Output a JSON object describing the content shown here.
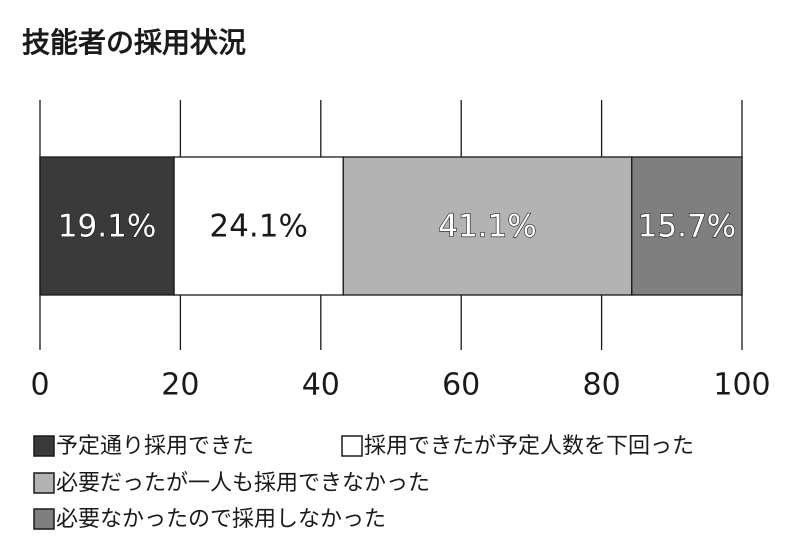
{
  "chart_data": {
    "type": "bar",
    "orientation": "horizontal",
    "stacked": true,
    "title": "技能者の採用状況",
    "series": [
      {
        "name": "予定通り採用できた",
        "color": "#3a3a3a",
        "values": [
          19.1
        ],
        "value_labels": [
          "19.1%"
        ]
      },
      {
        "name": "採用できたが予定人数を下回った",
        "color": "#ffffff",
        "values": [
          24.1
        ],
        "value_labels": [
          "24.1%"
        ]
      },
      {
        "name": "必要だったが一人も採用できなかった",
        "color": "#b3b3b3",
        "values": [
          41.1
        ],
        "value_labels": [
          "41.1%"
        ]
      },
      {
        "name": "必要なかったので採用しなかった",
        "color": "#7f7f7f",
        "values": [
          15.7
        ],
        "value_labels": [
          "15.7%"
        ]
      }
    ],
    "xlim": [
      0,
      100
    ],
    "xticks": [
      0,
      20,
      40,
      60,
      80,
      100
    ],
    "grid": true
  }
}
